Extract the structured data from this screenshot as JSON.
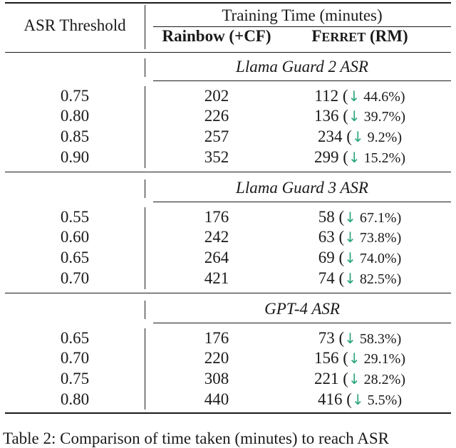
{
  "header": {
    "col1": "ASR Threshold",
    "group": "Training Time (minutes)",
    "col2": "Rainbow (+CF)",
    "col3_first": "F",
    "col3_rest": "ERRET",
    "col3_suffix": " (RM)"
  },
  "down_arrow": "↓",
  "sections": [
    {
      "title": "Llama Guard 2 ASR",
      "rows": [
        {
          "threshold": "0.75",
          "rainbow": "202",
          "ferret": "112 (",
          "pct": " 44.6%)"
        },
        {
          "threshold": "0.80",
          "rainbow": "226",
          "ferret": "136 (",
          "pct": " 39.7%)"
        },
        {
          "threshold": "0.85",
          "rainbow": "257",
          "ferret": "234 (",
          "pct": " 9.2%)"
        },
        {
          "threshold": "0.90",
          "rainbow": "352",
          "ferret": "299 (",
          "pct": " 15.2%)"
        }
      ]
    },
    {
      "title": "Llama Guard 3 ASR",
      "rows": [
        {
          "threshold": "0.55",
          "rainbow": "176",
          "ferret": "58 (",
          "pct": " 67.1%)"
        },
        {
          "threshold": "0.60",
          "rainbow": "242",
          "ferret": "63 (",
          "pct": " 73.8%)"
        },
        {
          "threshold": "0.65",
          "rainbow": "264",
          "ferret": "69 (",
          "pct": " 74.0%)"
        },
        {
          "threshold": "0.70",
          "rainbow": "421",
          "ferret": "74 (",
          "pct": " 82.5%)"
        }
      ]
    },
    {
      "title": "GPT-4 ASR",
      "rows": [
        {
          "threshold": "0.65",
          "rainbow": "176",
          "ferret": "73 (",
          "pct": " 58.3%)"
        },
        {
          "threshold": "0.70",
          "rainbow": "220",
          "ferret": "156 (",
          "pct": " 29.1%)"
        },
        {
          "threshold": "0.75",
          "rainbow": "308",
          "ferret": "221 (",
          "pct": " 28.2%)"
        },
        {
          "threshold": "0.80",
          "rainbow": "440",
          "ferret": "416 (",
          "pct": " 5.5%)"
        }
      ]
    }
  ],
  "caption": "Table 2: Comparison of time taken (minutes) to reach ASR"
}
